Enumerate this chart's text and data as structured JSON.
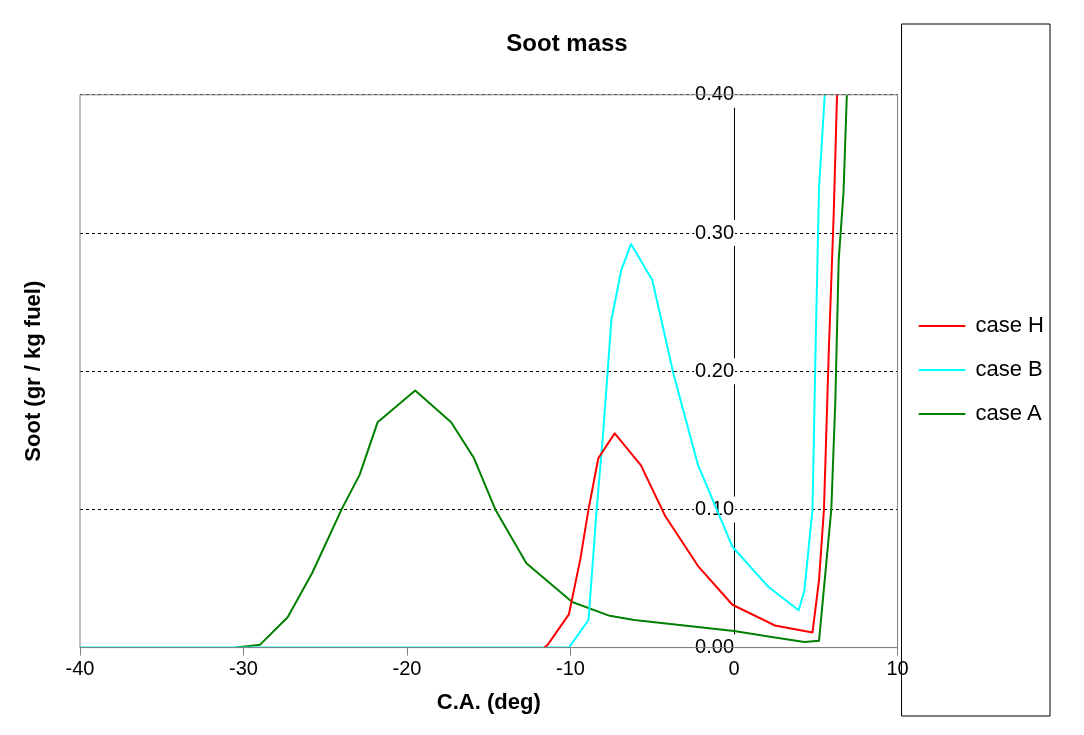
{
  "chart_data": {
    "type": "line",
    "title": "Soot mass",
    "xlabel": "C.A. (deg)",
    "ylabel": "Soot (gr / kg fuel)",
    "xlim": [
      -40,
      10
    ],
    "xticks": [
      -40,
      -30,
      -20,
      -10,
      0,
      10
    ],
    "ylim": [
      0,
      0.4
    ],
    "yticks": [
      {
        "value": 0,
        "label": "0.00"
      },
      {
        "value": 0.1,
        "label": "0.10"
      },
      {
        "value": 0.2,
        "label": "0.20"
      },
      {
        "value": 0.3,
        "label": "0.30"
      },
      {
        "value": 0.4,
        "label": "0.40"
      }
    ],
    "grid": "y",
    "legend": "right",
    "marker": "none",
    "line_style": "solid",
    "series": [
      {
        "name": "case H",
        "color": "#ff0000",
        "x": [
          -11.6,
          -11.4,
          -10.1,
          -9.4,
          -8.9,
          -8.3,
          -7.3,
          -5.7,
          -4.2,
          -2.2,
          -0.1,
          2.5,
          4.8,
          5.2,
          5.5,
          5.8,
          6.1,
          6.3
        ],
        "values": [
          0,
          0.002,
          0.024,
          0.064,
          0.1,
          0.137,
          0.155,
          0.132,
          0.095,
          0.059,
          0.031,
          0.016,
          0.011,
          0.049,
          0.1,
          0.216,
          0.315,
          0.4
        ]
      },
      {
        "name": "case B",
        "color": "#00ffff",
        "x": [
          -40,
          -10.1,
          -8.9,
          -8.4,
          -8.0,
          -7.5,
          -6.9,
          -6.3,
          -5.0,
          -3.7,
          -2.2,
          -0.1,
          2.1,
          3.95,
          4.3,
          4.8,
          5.0,
          5.2,
          5.55
        ],
        "values": [
          0,
          0,
          0.02,
          0.1,
          0.156,
          0.237,
          0.273,
          0.292,
          0.266,
          0.198,
          0.132,
          0.073,
          0.044,
          0.027,
          0.041,
          0.1,
          0.224,
          0.333,
          0.4
        ]
      },
      {
        "name": "case A",
        "color": "#008000",
        "x": [
          -30.5,
          -29.0,
          -27.3,
          -25.8,
          -24.0,
          -22.9,
          -21.8,
          -19.5,
          -17.3,
          -15.9,
          -14.6,
          -12.7,
          -9.9,
          -7.6,
          -6.1,
          0,
          4.3,
          5.2,
          5.95,
          6.2,
          6.4,
          6.7,
          6.9
        ],
        "values": [
          0,
          0.002,
          0.022,
          0.054,
          0.1,
          0.125,
          0.163,
          0.186,
          0.163,
          0.137,
          0.1,
          0.061,
          0.033,
          0.023,
          0.02,
          0.012,
          0.004,
          0.005,
          0.1,
          0.18,
          0.28,
          0.33,
          0.4
        ]
      }
    ]
  }
}
